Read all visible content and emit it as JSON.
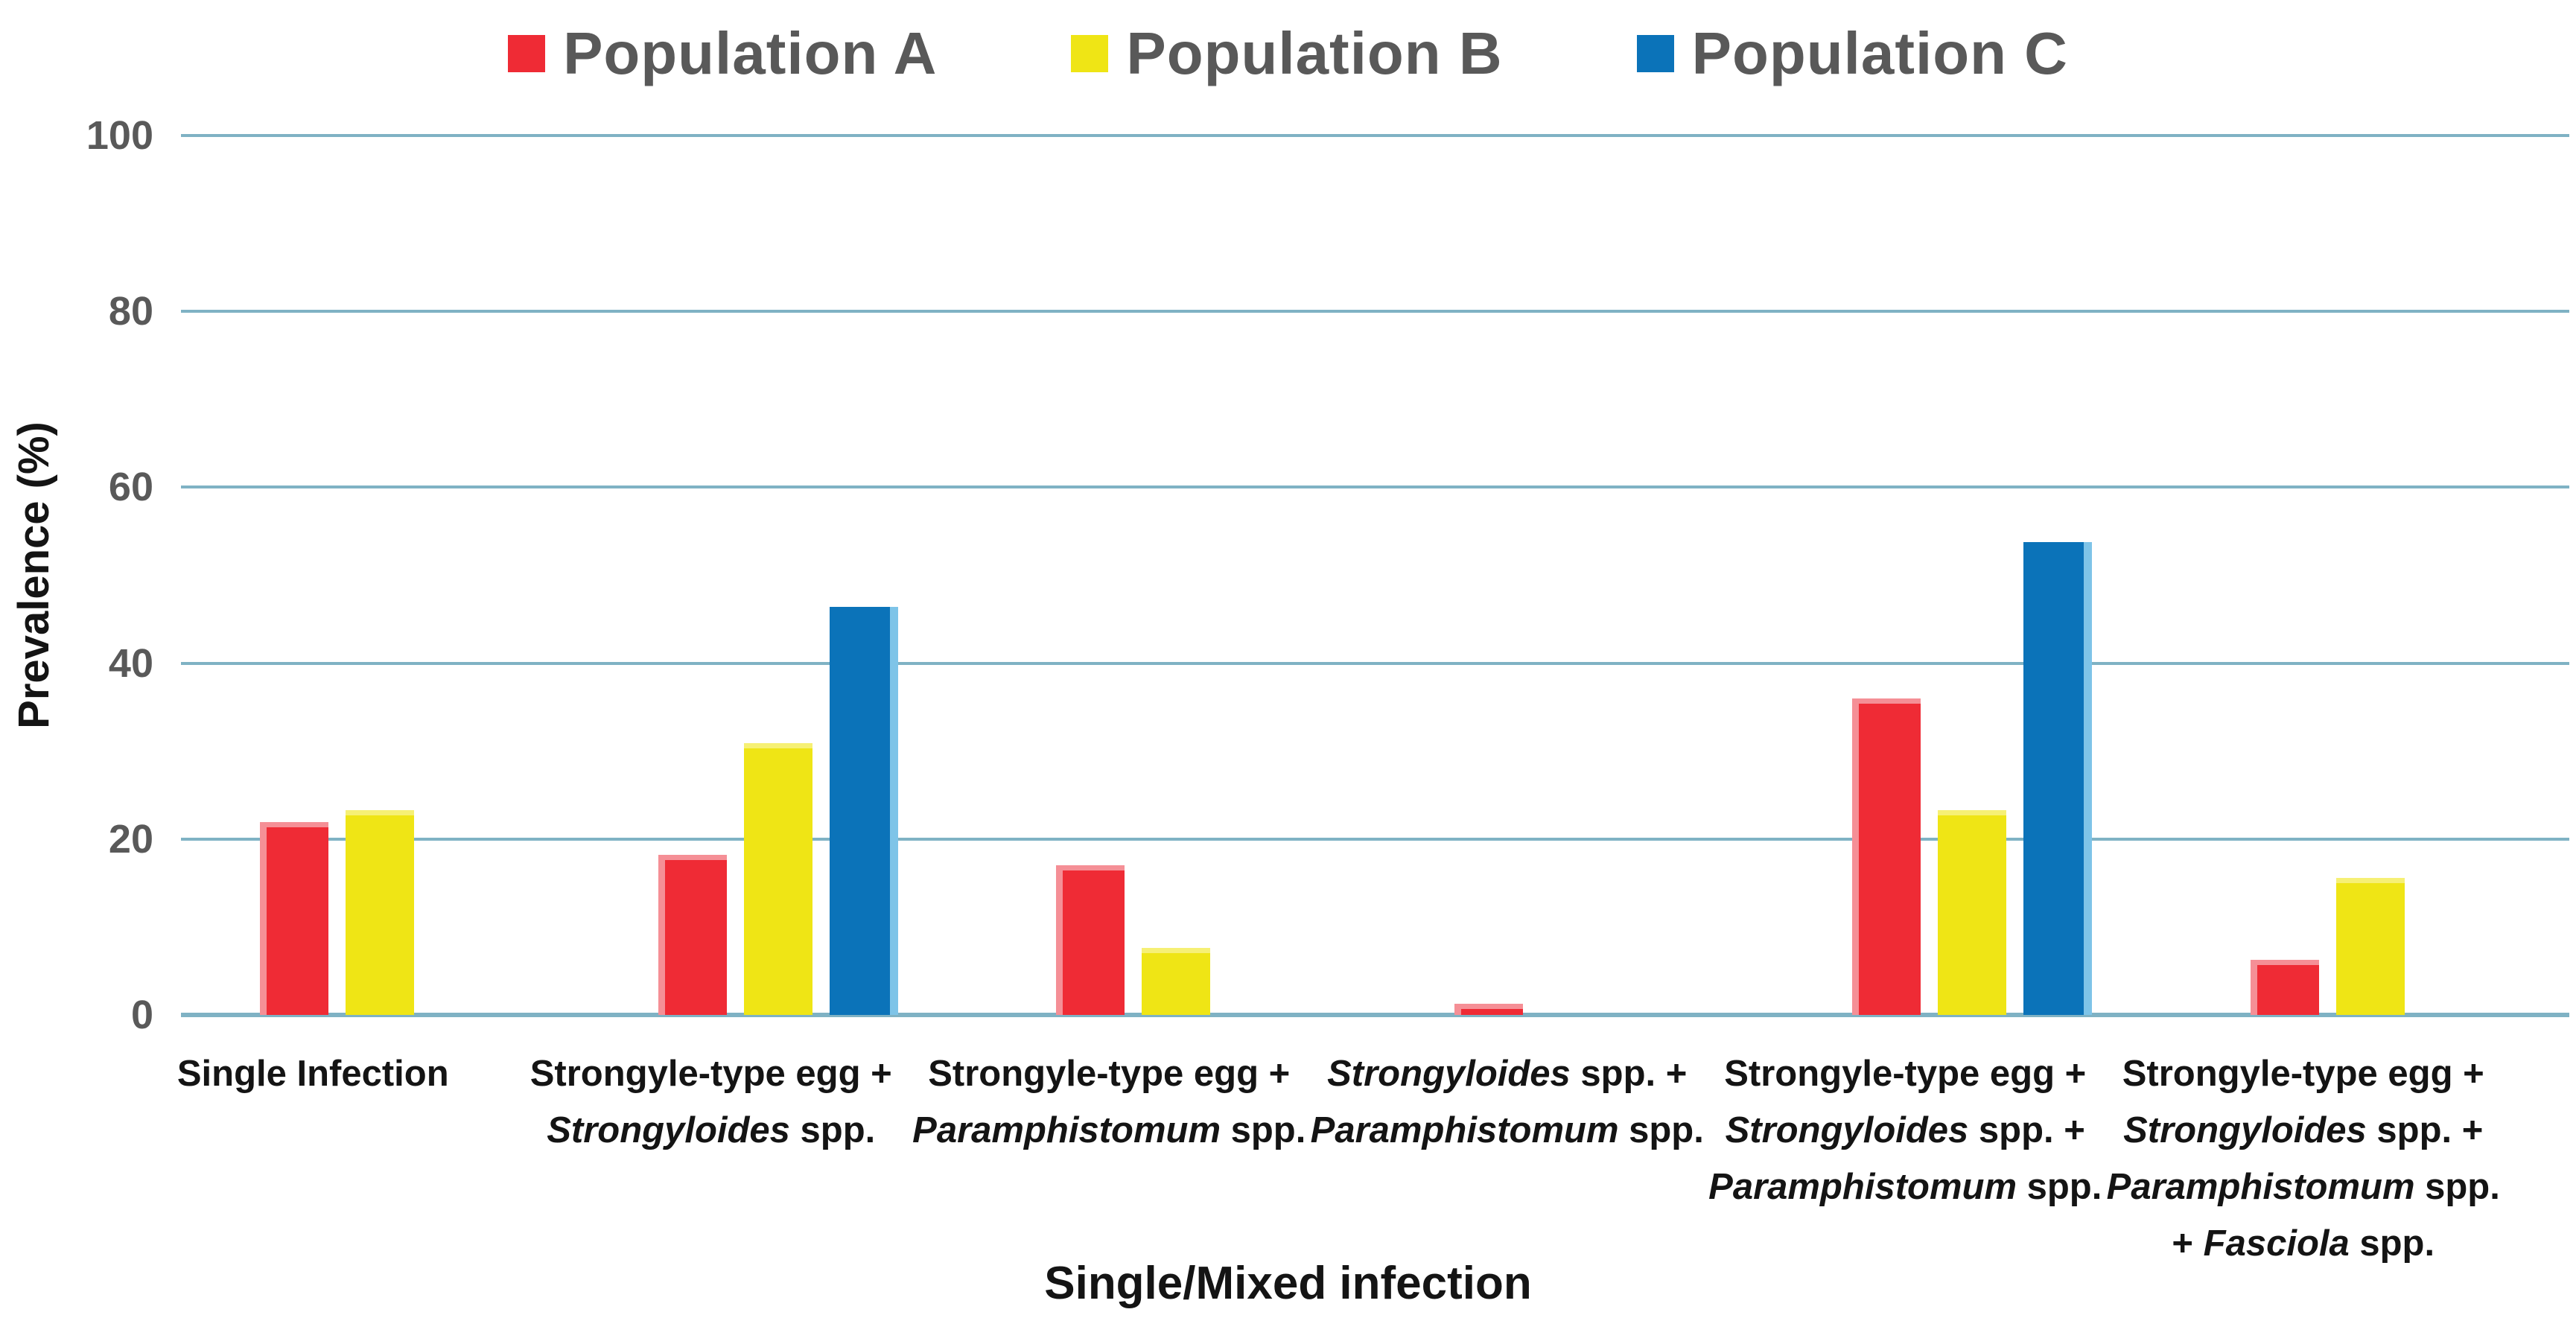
{
  "legend": {
    "items": [
      {
        "label": "Population A",
        "color": "#EF2B35"
      },
      {
        "label": "Population B",
        "color": "#EFE515"
      },
      {
        "label": "Population C",
        "color": "#0B73B9"
      }
    ]
  },
  "y_axis": {
    "title": "Prevalence (%)",
    "ticks": [
      0,
      20,
      40,
      60,
      80,
      100
    ],
    "min": 0,
    "max": 100
  },
  "x_axis": {
    "title": "Single/Mixed infection"
  },
  "colors": {
    "gridline": "#7FB2C4",
    "tick_text": "#595959",
    "legend_text": "#595959",
    "label_text": "#141414",
    "red_highlight": "#F58F96",
    "yellow_highlight": "#F6F075",
    "blue_highlight": "#7EC4E8"
  },
  "chart_data": {
    "type": "bar",
    "title": "",
    "xlabel": "Single/Mixed infection",
    "ylabel": "Prevalence (%)",
    "ylim": [
      0,
      100
    ],
    "yticks": [
      0,
      20,
      40,
      60,
      80,
      100
    ],
    "grid": true,
    "legend_position": "top",
    "categories": [
      "Single Infection",
      "Strongyle-type egg + Strongyloides spp.",
      "Strongyle-type egg + Paramphistomum spp.",
      "Strongyloides spp. + Paramphistomum spp.",
      "Strongyle-type egg + Strongyloides spp. + Paramphistomum spp.",
      "Strongyle-type egg + Strongyloides spp. + Paramphistomum spp. + Fasciola spp."
    ],
    "categories_rich": [
      [
        [
          {
            "t": "Single Infection",
            "i": false
          }
        ]
      ],
      [
        [
          {
            "t": "Strongyle-type egg +",
            "i": false
          }
        ],
        [
          {
            "t": "Strongyloides",
            "i": true
          },
          {
            "t": " spp.",
            "i": false
          }
        ]
      ],
      [
        [
          {
            "t": "Strongyle-type egg +",
            "i": false
          }
        ],
        [
          {
            "t": "Paramphistomum",
            "i": true
          },
          {
            "t": " spp.",
            "i": false
          }
        ]
      ],
      [
        [
          {
            "t": "Strongyloides",
            "i": true
          },
          {
            "t": " spp. +",
            "i": false
          }
        ],
        [
          {
            "t": "Paramphistomum",
            "i": true
          },
          {
            "t": " spp.",
            "i": false
          }
        ]
      ],
      [
        [
          {
            "t": "Strongyle-type egg +",
            "i": false
          }
        ],
        [
          {
            "t": "Strongyloides",
            "i": true
          },
          {
            "t": " spp. +",
            "i": false
          }
        ],
        [
          {
            "t": "Paramphistomum",
            "i": true
          },
          {
            "t": " spp.",
            "i": false
          }
        ]
      ],
      [
        [
          {
            "t": "Strongyle-type egg +",
            "i": false
          }
        ],
        [
          {
            "t": "Strongyloides",
            "i": true
          },
          {
            "t": " spp. +",
            "i": false
          }
        ],
        [
          {
            "t": "Paramphistomum",
            "i": true
          },
          {
            "t": " spp.",
            "i": false
          }
        ],
        [
          {
            "t": "+ ",
            "i": false
          },
          {
            "t": "Fasciola",
            "i": true
          },
          {
            "t": " spp.",
            "i": false
          }
        ]
      ]
    ],
    "series": [
      {
        "name": "Population A",
        "color": "#EF2B35",
        "values": [
          21.9,
          18.2,
          17.0,
          1.3,
          36.0,
          6.3
        ]
      },
      {
        "name": "Population B",
        "color": "#EFE515",
        "values": [
          23.3,
          30.9,
          7.6,
          0,
          23.3,
          15.6
        ]
      },
      {
        "name": "Population C",
        "color": "#0B73B9",
        "values": [
          0,
          46.4,
          0,
          0,
          53.8,
          0
        ]
      }
    ]
  }
}
